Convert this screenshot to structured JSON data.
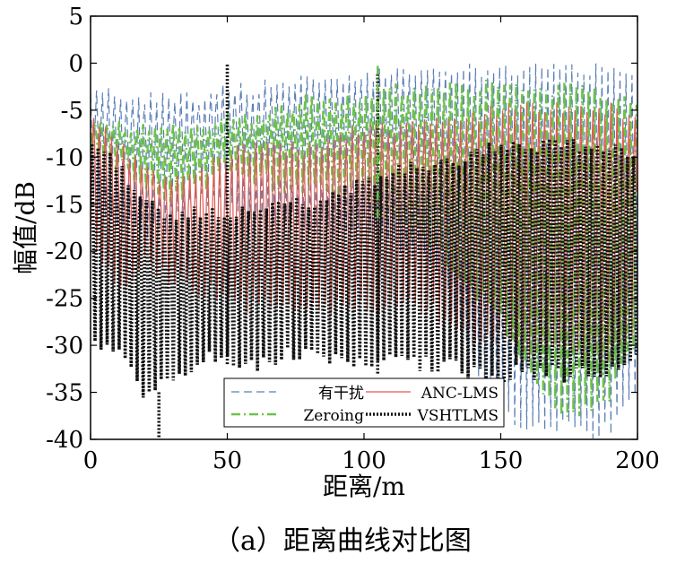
{
  "caption": "（a）距离曲线对比图",
  "chart_data": {
    "type": "line",
    "xlabel": "距离/m",
    "ylabel": "幅值/dB",
    "xlim": [
      0,
      200
    ],
    "ylim": [
      -40,
      5
    ],
    "xticks": [
      0,
      50,
      100,
      150,
      200
    ],
    "yticks": [
      5,
      0,
      -5,
      -10,
      -15,
      -20,
      -25,
      -30,
      -35,
      -40
    ],
    "grid": false,
    "legend_position": "bottom-right",
    "series": [
      {
        "name": "有干扰",
        "color": "#5b7fb5",
        "dash": "dashed",
        "x": [
          0,
          10,
          20,
          30,
          40,
          50,
          60,
          70,
          80,
          90,
          100,
          110,
          120,
          130,
          140,
          150,
          160,
          170,
          180,
          190,
          200
        ],
        "upper": [
          -2,
          -3,
          -3,
          -3,
          -3,
          -2,
          -2,
          -1,
          -1,
          -1,
          -1,
          0,
          0,
          0,
          0,
          0,
          0,
          0,
          0,
          0,
          0
        ],
        "lower": [
          -15,
          -18,
          -19,
          -18,
          -15,
          -16,
          -18,
          -17,
          -18,
          -19,
          -18,
          -20,
          -21,
          -24,
          -33,
          -38,
          -40,
          -40,
          -40,
          -40,
          -35
        ]
      },
      {
        "name": "Zeroing",
        "color": "#6cc24a",
        "dash": "dashdot",
        "x": [
          0,
          10,
          20,
          30,
          40,
          50,
          60,
          70,
          80,
          90,
          100,
          110,
          120,
          130,
          140,
          150,
          160,
          170,
          180,
          190,
          200
        ],
        "upper": [
          -5,
          -6,
          -6,
          -6,
          -6,
          -5,
          -5,
          -4,
          -3,
          -3,
          -3,
          -2,
          -2,
          -2,
          -2,
          -1,
          -2,
          -2,
          -2,
          -3,
          -3
        ],
        "lower": [
          -10,
          -12,
          -14,
          -15,
          -14,
          -12,
          -13,
          -14,
          -14,
          -15,
          -15,
          -18,
          -20,
          -22,
          -25,
          -28,
          -33,
          -38,
          -38,
          -36,
          -30
        ]
      },
      {
        "name": "ANC-LMS",
        "color": "#e05a50",
        "dash": "solid",
        "x": [
          0,
          10,
          20,
          30,
          40,
          50,
          60,
          70,
          80,
          90,
          100,
          110,
          120,
          130,
          140,
          150,
          160,
          170,
          180,
          190,
          200
        ],
        "upper": [
          -5,
          -8,
          -10,
          -12,
          -11,
          -9,
          -8,
          -8,
          -8,
          -7,
          -6,
          -6,
          -6,
          -5,
          -5,
          -4,
          -4,
          -4,
          -4,
          -4,
          -5
        ],
        "lower": [
          -20,
          -25,
          -22,
          -24,
          -25,
          -26,
          -27,
          -27,
          -27,
          -27,
          -27,
          -27,
          -27,
          -28,
          -30,
          -30,
          -32,
          -32,
          -32,
          -32,
          -30
        ]
      },
      {
        "name": "VSHTLMS",
        "color": "#111111",
        "dash": "dotted",
        "x": [
          0,
          10,
          20,
          30,
          40,
          50,
          60,
          70,
          80,
          90,
          100,
          110,
          120,
          130,
          140,
          150,
          160,
          170,
          180,
          190,
          200
        ],
        "upper": [
          -8,
          -10,
          -14,
          -16,
          -15,
          -15,
          -15,
          -14,
          -14,
          -13,
          -12,
          -11,
          -10,
          -10,
          -9,
          -8,
          -8,
          -8,
          -8,
          -8,
          -9
        ],
        "lower": [
          -30,
          -32,
          -36,
          -34,
          -33,
          -32,
          -33,
          -32,
          -32,
          -33,
          -33,
          -33,
          -33,
          -33,
          -34,
          -34,
          -34,
          -34,
          -34,
          -34,
          -32
        ]
      }
    ],
    "spikes": [
      {
        "series": "VSHTLMS",
        "x": 50,
        "y": 0
      },
      {
        "series": "VSHTLMS",
        "x": 105,
        "y": -1
      },
      {
        "series": "Zeroing",
        "x": 105,
        "y": 0
      },
      {
        "series": "VSHTLMS",
        "x": 25,
        "y": -40
      }
    ]
  }
}
